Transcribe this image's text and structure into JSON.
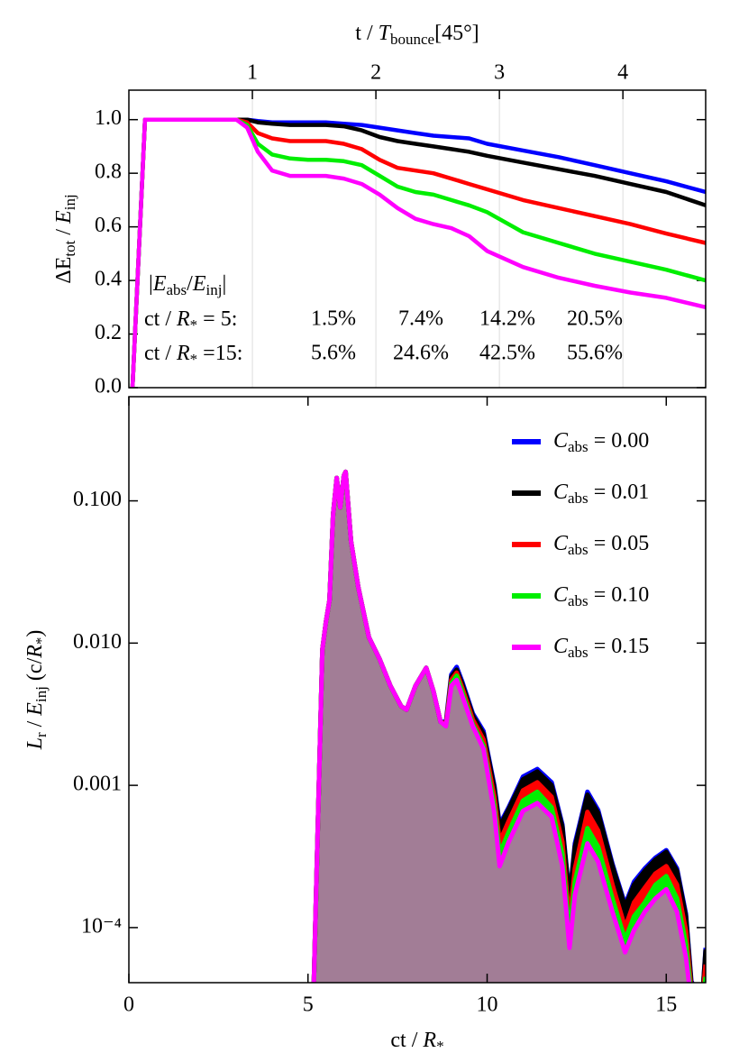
{
  "chart_data": [
    {
      "type": "line",
      "x2label": [
        "t / ",
        "T",
        "bounce",
        "[45°]"
      ],
      "ylabel": [
        "ΔE",
        "tot",
        " / ",
        "E",
        "inj"
      ],
      "x": [
        0.1,
        0.45,
        1,
        2,
        3,
        3.3,
        3.6,
        4,
        4.5,
        5,
        5.5,
        6,
        6.5,
        7,
        7.5,
        8,
        8.5,
        9,
        9.5,
        10,
        11,
        12,
        13,
        14,
        15,
        16.1
      ],
      "xlim": [
        0,
        16.1
      ],
      "x2lim": [
        0,
        4.67
      ],
      "x2ticks": [
        1,
        2,
        3,
        4
      ],
      "x2grid": true,
      "ylim": [
        0,
        1.11
      ],
      "yticks": [
        {
          "value": 0,
          "label": "0.0"
        },
        {
          "value": 0.2,
          "label": "0.2"
        },
        {
          "value": 0.4,
          "label": "0.4"
        },
        {
          "value": 0.6,
          "label": "0.6"
        },
        {
          "value": 0.8,
          "label": "0.8"
        },
        {
          "value": 1,
          "label": "1.0"
        }
      ],
      "series": [
        {
          "color": "#0000ff",
          "values": [
            0,
            1,
            1,
            1,
            1,
            1,
            0.995,
            0.99,
            0.99,
            0.99,
            0.99,
            0.985,
            0.98,
            0.97,
            0.96,
            0.95,
            0.94,
            0.935,
            0.93,
            0.91,
            0.885,
            0.86,
            0.83,
            0.8,
            0.77,
            0.73
          ]
        },
        {
          "color": "#000000",
          "values": [
            0,
            1,
            1,
            1,
            1,
            1,
            0.99,
            0.985,
            0.98,
            0.98,
            0.98,
            0.975,
            0.96,
            0.935,
            0.92,
            0.91,
            0.9,
            0.89,
            0.88,
            0.865,
            0.84,
            0.815,
            0.79,
            0.76,
            0.73,
            0.68
          ]
        },
        {
          "color": "#ff0000",
          "values": [
            0,
            1,
            1,
            1,
            1,
            0.99,
            0.95,
            0.93,
            0.92,
            0.92,
            0.92,
            0.91,
            0.89,
            0.85,
            0.82,
            0.81,
            0.8,
            0.78,
            0.76,
            0.74,
            0.7,
            0.67,
            0.64,
            0.61,
            0.575,
            0.54
          ]
        },
        {
          "color": "#00ee00",
          "values": [
            0,
            1,
            1,
            1,
            1,
            0.98,
            0.91,
            0.87,
            0.855,
            0.85,
            0.85,
            0.845,
            0.83,
            0.79,
            0.75,
            0.73,
            0.72,
            0.7,
            0.68,
            0.655,
            0.58,
            0.54,
            0.5,
            0.47,
            0.44,
            0.4
          ]
        },
        {
          "color": "#ff00ff",
          "values": [
            0,
            1,
            1,
            1,
            1,
            0.97,
            0.88,
            0.81,
            0.79,
            0.79,
            0.79,
            0.78,
            0.76,
            0.72,
            0.67,
            0.63,
            0.61,
            0.595,
            0.565,
            0.51,
            0.45,
            0.41,
            0.38,
            0.355,
            0.335,
            0.3
          ]
        }
      ],
      "annotation": {
        "header": [
          "|",
          "E",
          "abs",
          "/",
          "E",
          "inj",
          "|"
        ],
        "colors": [
          "#000000",
          "#ff0000",
          "#00ee00",
          "#ff00ff"
        ],
        "rows": [
          {
            "label": [
              "ct / ",
              "R",
              "*",
              " = 5:"
            ],
            "values": [
              "1.5%",
              "7.4%",
              "14.2%",
              "20.5%"
            ]
          },
          {
            "label": [
              "ct / ",
              "R",
              "*",
              " =15:"
            ],
            "values": [
              "5.6%",
              "24.6%",
              "42.5%",
              "55.6%"
            ]
          }
        ]
      }
    },
    {
      "type": "area",
      "xlabel": [
        "ct / ",
        "R",
        "*"
      ],
      "ylabel": [
        "L",
        "r",
        " / ",
        "E",
        "inj",
        " (c/",
        "R",
        "*",
        ")"
      ],
      "x": [
        5.15,
        5.25,
        5.4,
        5.5,
        5.6,
        5.7,
        5.8,
        5.9,
        6.0,
        6.05,
        6.2,
        6.4,
        6.7,
        7.0,
        7.3,
        7.6,
        7.75,
        8.0,
        8.3,
        8.5,
        8.7,
        8.85,
        9.0,
        9.15,
        9.3,
        9.6,
        9.9,
        10.2,
        10.35,
        10.6,
        11.0,
        11.4,
        11.8,
        12.1,
        12.3,
        12.45,
        12.8,
        13.1,
        13.5,
        13.85,
        14.1,
        14.4,
        14.7,
        15.0,
        15.3,
        15.55,
        15.7,
        16.0,
        16.1
      ],
      "xlim": [
        0,
        16.1
      ],
      "xticks": [
        0,
        5,
        10,
        15
      ],
      "ylim": [
        4.1e-05,
        0.54
      ],
      "yscale": "log",
      "yticks": [
        {
          "value": 0.1,
          "label": "0.100"
        },
        {
          "value": 0.01,
          "label": "0.010"
        },
        {
          "value": 0.001,
          "label": "0.001"
        },
        {
          "value": 0.0001,
          "label": "10⁻⁴"
        }
      ],
      "area_color": "#a27d96",
      "legend": "upper right",
      "series": [
        {
          "name": "Cabs = 0.00",
          "color": "#0000ff",
          "values": [
            3e-05,
            0.0003,
            0.009,
            0.014,
            0.02,
            0.08,
            0.145,
            0.09,
            0.15,
            0.16,
            0.052,
            0.025,
            0.011,
            0.0077,
            0.005,
            0.0036,
            0.0034,
            0.005,
            0.0067,
            0.0046,
            0.0028,
            0.0028,
            0.006,
            0.0068,
            0.0054,
            0.0032,
            0.0024,
            0.001,
            0.00053,
            0.0007,
            0.00115,
            0.0013,
            0.00105,
            0.00053,
            0.000165,
            0.00039,
            0.0009,
            0.00067,
            0.00028,
            0.000145,
            0.00021,
            0.00026,
            0.00031,
            0.00035,
            0.00026,
            0.000125,
            4.2e-05,
            3e-05,
            7.2e-05
          ]
        },
        {
          "name": "Cabs = 0.01",
          "color": "#000000",
          "values": [
            3e-05,
            0.0003,
            0.009,
            0.014,
            0.02,
            0.08,
            0.145,
            0.09,
            0.15,
            0.16,
            0.052,
            0.025,
            0.011,
            0.0077,
            0.005,
            0.0036,
            0.0034,
            0.005,
            0.0067,
            0.0046,
            0.0028,
            0.0027,
            0.0058,
            0.0065,
            0.0052,
            0.0031,
            0.0023,
            0.00096,
            0.00051,
            0.00068,
            0.0011,
            0.00125,
            0.001,
            0.00051,
            0.00016,
            0.00037,
            0.00086,
            0.00064,
            0.00027,
            0.00014,
            0.0002,
            0.00025,
            0.0003,
            0.00034,
            0.00025,
            0.00012,
            4e-05,
            3e-05,
            7e-05
          ]
        },
        {
          "name": "Cabs = 0.05",
          "color": "#ff0000",
          "values": [
            3e-05,
            0.0003,
            0.009,
            0.014,
            0.02,
            0.08,
            0.145,
            0.09,
            0.15,
            0.16,
            0.052,
            0.025,
            0.011,
            0.0077,
            0.005,
            0.0036,
            0.0034,
            0.005,
            0.0067,
            0.0046,
            0.0028,
            0.0027,
            0.0055,
            0.0062,
            0.0049,
            0.0029,
            0.0021,
            0.00083,
            0.0004,
            0.00056,
            0.00092,
            0.00105,
            0.00083,
            0.0004,
            0.00011,
            0.00026,
            0.00065,
            0.00048,
            0.0002,
            0.0001,
            0.00015,
            0.00019,
            0.00024,
            0.00027,
            0.0002,
            9.5e-05,
            3.6e-05,
            3e-05,
            5.5e-05
          ]
        },
        {
          "name": "Cabs = 0.10",
          "color": "#00ee00",
          "values": [
            3e-05,
            0.0003,
            0.009,
            0.014,
            0.02,
            0.08,
            0.145,
            0.09,
            0.15,
            0.16,
            0.052,
            0.025,
            0.011,
            0.0077,
            0.005,
            0.0036,
            0.0034,
            0.005,
            0.0067,
            0.0046,
            0.0028,
            0.0026,
            0.0052,
            0.0059,
            0.0046,
            0.0027,
            0.0019,
            0.00072,
            0.00033,
            0.00047,
            0.00078,
            0.0009,
            0.0007,
            0.00033,
            9e-05,
            0.00021,
            0.0005,
            0.00037,
            0.00016,
            8.2e-05,
            0.00012,
            0.00015,
            0.0002,
            0.00023,
            0.00016,
            7.7e-05,
            3.3e-05,
            3e-05,
            4.5e-05
          ]
        },
        {
          "name": "Cabs = 0.15",
          "color": "#ff00ff",
          "values": [
            3e-05,
            0.0003,
            0.009,
            0.014,
            0.02,
            0.08,
            0.145,
            0.09,
            0.15,
            0.16,
            0.052,
            0.025,
            0.011,
            0.0077,
            0.005,
            0.0036,
            0.0034,
            0.005,
            0.0067,
            0.0046,
            0.0028,
            0.0026,
            0.005,
            0.0055,
            0.0043,
            0.0026,
            0.0018,
            0.00064,
            0.00027,
            0.0004,
            0.00066,
            0.00075,
            0.0006,
            0.00027,
            7.2e-05,
            0.00017,
            0.00039,
            0.00029,
            0.000129,
            6.7e-05,
            9.6e-05,
            0.000129,
            0.00016,
            0.000186,
            0.000129,
            6.2e-05,
            3e-05,
            3e-05,
            3.5e-05
          ]
        }
      ]
    }
  ]
}
